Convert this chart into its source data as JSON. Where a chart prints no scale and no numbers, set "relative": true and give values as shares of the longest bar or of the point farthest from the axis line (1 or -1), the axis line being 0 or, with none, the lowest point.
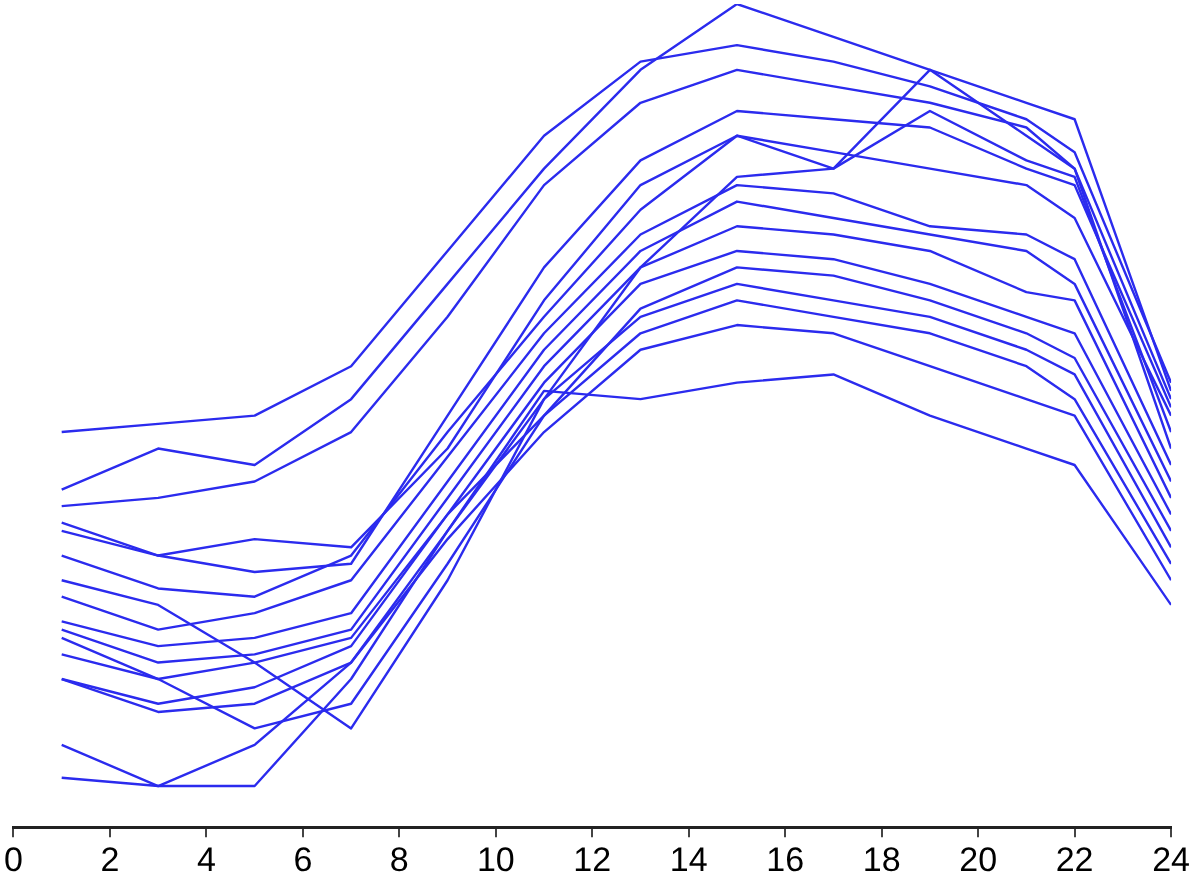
{
  "chart_data": {
    "type": "line",
    "relative": true,
    "x": [
      1,
      3,
      5,
      7,
      9,
      11,
      13,
      15,
      17,
      19,
      21,
      22,
      24
    ],
    "xlim": [
      0,
      24
    ],
    "xticks": [
      0,
      2,
      4,
      6,
      8,
      10,
      12,
      14,
      16,
      18,
      20,
      22,
      24
    ],
    "marker": "none",
    "line_style": "solid",
    "series": [
      {
        "color": "#2b2bee",
        "values": [
          0.48,
          0.49,
          0.5,
          0.56,
          0.7,
          0.84,
          0.93,
          0.95,
          0.93,
          0.9,
          0.86,
          0.82,
          0.54
        ]
      },
      {
        "color": "#2b2bee",
        "values": [
          0.41,
          0.46,
          0.44,
          0.52,
          0.66,
          0.8,
          0.92,
          1.0,
          0.96,
          0.92,
          0.88,
          0.86,
          0.53
        ]
      },
      {
        "color": "#2b2bee",
        "values": [
          0.39,
          0.4,
          0.42,
          0.48,
          0.62,
          0.78,
          0.88,
          0.92,
          0.9,
          0.88,
          0.85,
          0.8,
          0.52
        ]
      },
      {
        "color": "#2b2bee",
        "values": [
          0.37,
          0.33,
          0.31,
          0.32,
          0.5,
          0.68,
          0.81,
          0.87,
          0.86,
          0.85,
          0.8,
          0.78,
          0.51
        ]
      },
      {
        "color": "#2b2bee",
        "values": [
          0.36,
          0.33,
          0.35,
          0.34,
          0.46,
          0.64,
          0.78,
          0.84,
          0.82,
          0.8,
          0.78,
          0.74,
          0.5
        ]
      },
      {
        "color": "#2b2bee",
        "values": [
          0.33,
          0.29,
          0.28,
          0.33,
          0.48,
          0.62,
          0.75,
          0.84,
          0.8,
          0.87,
          0.81,
          0.79,
          0.48
        ]
      },
      {
        "color": "#2b2bee",
        "values": [
          0.3,
          0.27,
          0.2,
          0.12,
          0.3,
          0.52,
          0.68,
          0.79,
          0.8,
          0.92,
          0.84,
          0.8,
          0.46
        ]
      },
      {
        "color": "#2b2bee",
        "values": [
          0.28,
          0.24,
          0.26,
          0.3,
          0.45,
          0.6,
          0.72,
          0.78,
          0.77,
          0.73,
          0.72,
          0.69,
          0.44
        ]
      },
      {
        "color": "#2b2bee",
        "values": [
          0.25,
          0.22,
          0.23,
          0.26,
          0.42,
          0.58,
          0.7,
          0.76,
          0.74,
          0.72,
          0.7,
          0.66,
          0.42
        ]
      },
      {
        "color": "#2b2bee",
        "values": [
          0.24,
          0.2,
          0.21,
          0.24,
          0.4,
          0.56,
          0.68,
          0.73,
          0.72,
          0.7,
          0.65,
          0.64,
          0.4
        ]
      },
      {
        "color": "#2b2bee",
        "values": [
          0.23,
          0.18,
          0.2,
          0.23,
          0.38,
          0.54,
          0.66,
          0.7,
          0.69,
          0.66,
          0.62,
          0.6,
          0.38
        ]
      },
      {
        "color": "#2b2bee",
        "values": [
          0.21,
          0.18,
          0.12,
          0.15,
          0.32,
          0.5,
          0.63,
          0.68,
          0.67,
          0.64,
          0.6,
          0.57,
          0.36
        ]
      },
      {
        "color": "#2b2bee",
        "values": [
          0.18,
          0.14,
          0.15,
          0.2,
          0.36,
          0.52,
          0.62,
          0.66,
          0.64,
          0.62,
          0.58,
          0.55,
          0.34
        ]
      },
      {
        "color": "#2b2bee",
        "values": [
          0.18,
          0.15,
          0.17,
          0.22,
          0.38,
          0.5,
          0.6,
          0.64,
          0.62,
          0.6,
          0.56,
          0.52,
          0.32
        ]
      },
      {
        "color": "#2b2bee",
        "values": [
          0.1,
          0.05,
          0.1,
          0.2,
          0.35,
          0.48,
          0.58,
          0.61,
          0.6,
          0.56,
          0.52,
          0.5,
          0.3
        ]
      },
      {
        "color": "#2b2bee",
        "values": [
          0.06,
          0.05,
          0.05,
          0.18,
          0.36,
          0.53,
          0.52,
          0.54,
          0.55,
          0.5,
          0.46,
          0.44,
          0.27
        ]
      }
    ]
  }
}
